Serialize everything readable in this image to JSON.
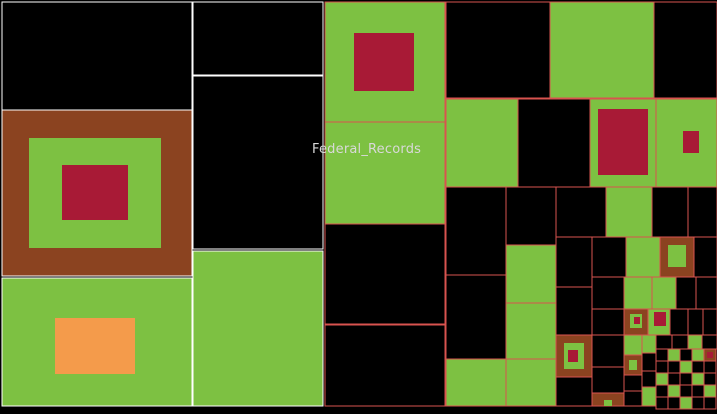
{
  "title": "Federal_Records",
  "colors": {
    "background": "#000000",
    "green": "#7dc142",
    "brown": "#8b4320",
    "crimson": "#a81a36",
    "orange": "#f49b4b",
    "white_border": "#ffffff",
    "red_border": "#d9534f"
  }
}
